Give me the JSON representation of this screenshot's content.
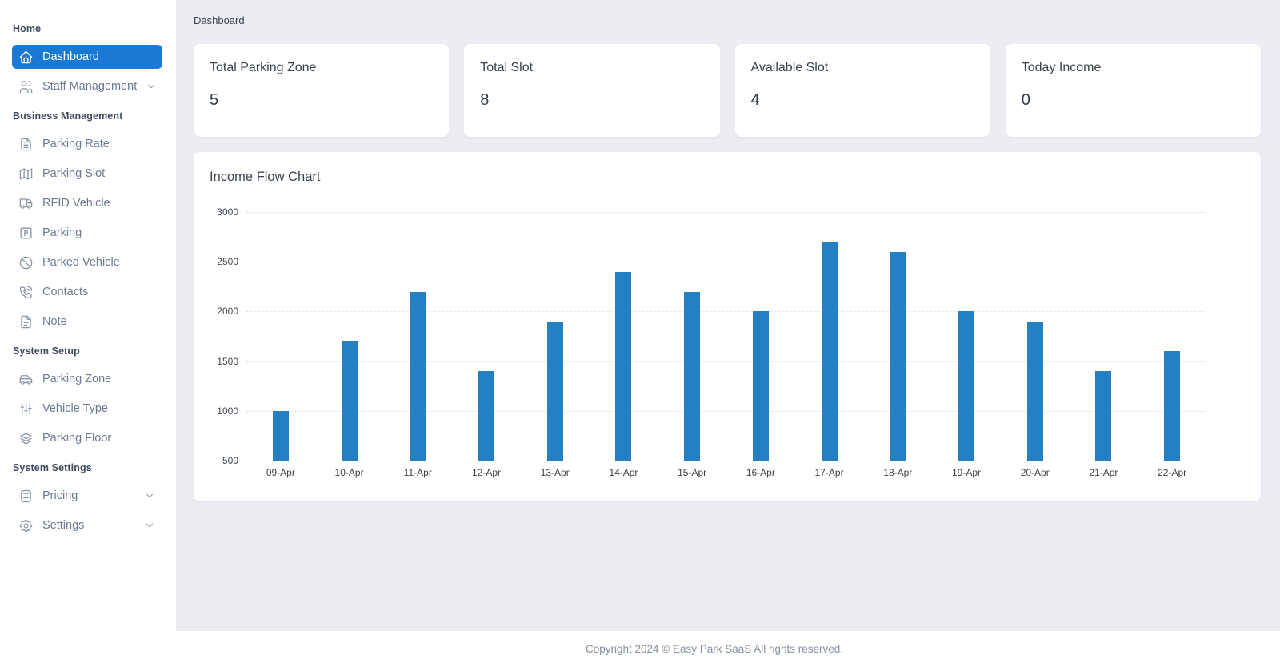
{
  "breadcrumb": "Dashboard",
  "colors": {
    "accent": "#1979d3",
    "sidebar_bg": "#ffffff",
    "content_bg": "#ecedf2",
    "bar_color": "#2580c3"
  },
  "sidebar": {
    "sections": [
      {
        "label": "Home",
        "items": [
          {
            "label": "Dashboard",
            "icon": "home-icon",
            "active": true
          },
          {
            "label": "Staff Management",
            "icon": "users-icon",
            "chevron": true
          }
        ]
      },
      {
        "label": "Business Management",
        "items": [
          {
            "label": "Parking Rate",
            "icon": "file-text-icon"
          },
          {
            "label": "Parking Slot",
            "icon": "map-icon"
          },
          {
            "label": "RFID Vehicle",
            "icon": "truck-icon"
          },
          {
            "label": "Parking",
            "icon": "parking-icon"
          },
          {
            "label": "Parked Vehicle",
            "icon": "ban-icon"
          },
          {
            "label": "Contacts",
            "icon": "phone-icon"
          },
          {
            "label": "Note",
            "icon": "note-icon"
          }
        ]
      },
      {
        "label": "System Setup",
        "items": [
          {
            "label": "Parking Zone",
            "icon": "car-icon"
          },
          {
            "label": "Vehicle Type",
            "icon": "adjustments-icon"
          },
          {
            "label": "Parking Floor",
            "icon": "layers-icon"
          }
        ]
      },
      {
        "label": "System Settings",
        "items": [
          {
            "label": "Pricing",
            "icon": "database-icon",
            "chevron": true
          },
          {
            "label": "Settings",
            "icon": "gear-icon",
            "chevron": true
          }
        ]
      }
    ]
  },
  "stats": [
    {
      "title": "Total Parking Zone",
      "value": "5"
    },
    {
      "title": "Total Slot",
      "value": "8"
    },
    {
      "title": "Available Slot",
      "value": "4"
    },
    {
      "title": "Today Income",
      "value": "0"
    }
  ],
  "chart_data": {
    "type": "bar",
    "title": "Income Flow Chart",
    "categories": [
      "09-Apr",
      "10-Apr",
      "11-Apr",
      "12-Apr",
      "13-Apr",
      "14-Apr",
      "15-Apr",
      "16-Apr",
      "17-Apr",
      "18-Apr",
      "19-Apr",
      "20-Apr",
      "21-Apr",
      "22-Apr"
    ],
    "values": [
      1000,
      1700,
      2200,
      1400,
      1900,
      2400,
      2200,
      2000,
      2700,
      2600,
      2000,
      1900,
      1400,
      1600
    ],
    "y_ticks": [
      3000,
      2500,
      2000,
      1500,
      1000,
      500
    ],
    "ylim": [
      500,
      3000
    ],
    "xlabel": "",
    "ylabel": "",
    "grid": "dotted-horizontal",
    "legend": "none",
    "bar_color": "#2580c3"
  },
  "footer": {
    "text": "Copyright 2024 © Easy Park SaaS All rights reserved."
  }
}
